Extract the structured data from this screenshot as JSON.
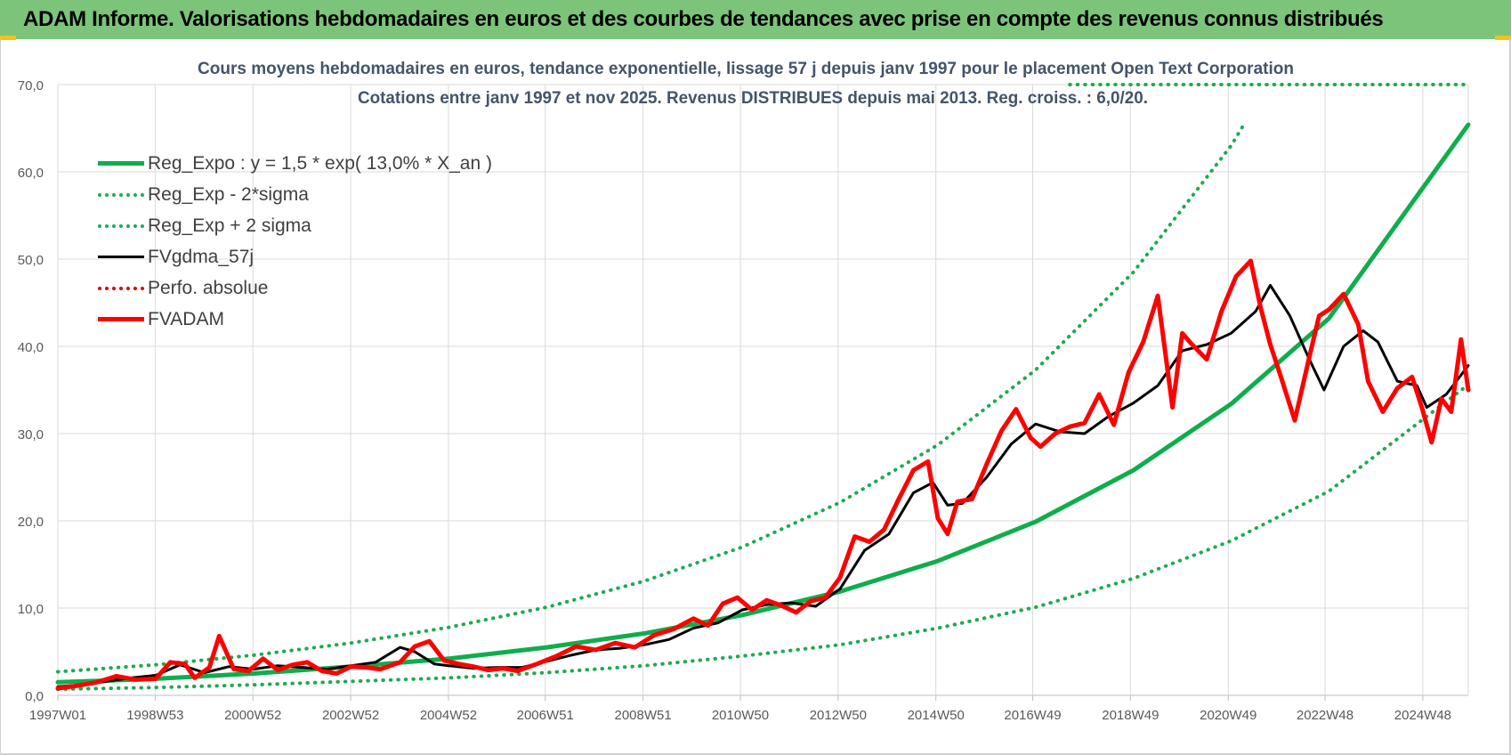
{
  "banner": {
    "title": "ADAM Informe. Valorisations hebdomadaires en euros et des courbes de tendances avec prise en compte des revenus connus distribués"
  },
  "colors": {
    "banner": "#7cc47a",
    "reg_expo": "#0fad4d",
    "sigma": "#1eab50",
    "fvgdma": "#000000",
    "perfo": "#e00000",
    "fvadam": "#ff0000",
    "title_text": "#44546a"
  },
  "chart_data": {
    "type": "line",
    "title": "Cours moyens hebdomadaires en euros, tendance exponentielle, lissage 57 j depuis janv 1997 pour le placement Open Text Corporation",
    "subtitle": "Cotations entre janv 1997 et nov 2025. Revenus DISTRIBUES depuis mai 2013. Reg. croiss. : 6,0/20.",
    "xlabel": "",
    "ylabel": "",
    "ylim": [
      0,
      70
    ],
    "xlim": [
      1997.0,
      2025.85
    ],
    "grid": true,
    "legend_position": "top-left",
    "y_ticks": [
      "0,0",
      "10,0",
      "20,0",
      "30,0",
      "40,0",
      "50,0",
      "60,0",
      "70,0"
    ],
    "x_ticks": [
      {
        "x": 1997.0,
        "label": "1997W01"
      },
      {
        "x": 1998.99,
        "label": "1998W53"
      },
      {
        "x": 2000.99,
        "label": "2000W52"
      },
      {
        "x": 2002.99,
        "label": "2002W52"
      },
      {
        "x": 2004.99,
        "label": "2004W52"
      },
      {
        "x": 2006.97,
        "label": "2006W51"
      },
      {
        "x": 2008.97,
        "label": "2008W51"
      },
      {
        "x": 2010.96,
        "label": "2010W50"
      },
      {
        "x": 2012.96,
        "label": "2012W50"
      },
      {
        "x": 2014.96,
        "label": "2014W50"
      },
      {
        "x": 2016.94,
        "label": "2016W49"
      },
      {
        "x": 2018.94,
        "label": "2018W49"
      },
      {
        "x": 2020.94,
        "label": "2020W49"
      },
      {
        "x": 2022.92,
        "label": "2022W48"
      },
      {
        "x": 2024.92,
        "label": "2024W48"
      }
    ],
    "series": [
      {
        "name": "Reg_Expo : y = 1,5 * exp( 13,0% *  X_an )",
        "style": "solid-thick",
        "color": "#0fad4d",
        "x": [
          1997.0,
          1999.0,
          2001.0,
          2003.0,
          2005.0,
          2007.0,
          2009.0,
          2011.0,
          2013.0,
          2015.0,
          2017.0,
          2019.0,
          2021.0,
          2023.0,
          2025.85
        ],
        "y": [
          1.5,
          1.9,
          2.5,
          3.3,
          4.2,
          5.5,
          7.1,
          9.2,
          11.9,
          15.4,
          19.9,
          25.8,
          33.4,
          43.2,
          65.4
        ]
      },
      {
        "name": "Reg_Exp - 2*sigma",
        "style": "dotted",
        "color": "#1eab50",
        "x": [
          1997.0,
          1999.0,
          2001.0,
          2003.0,
          2005.0,
          2007.0,
          2009.0,
          2011.0,
          2013.0,
          2015.0,
          2017.0,
          2019.0,
          2021.0,
          2023.0,
          2025.85
        ],
        "y": [
          0.7,
          0.9,
          1.2,
          1.6,
          2.0,
          2.6,
          3.4,
          4.5,
          5.8,
          7.7,
          10.1,
          13.4,
          17.7,
          23.4,
          35.6
        ]
      },
      {
        "name": "Reg_Exp + 2 sigma",
        "style": "dotted",
        "color": "#1eab50",
        "x": [
          1997.0,
          1999.0,
          2001.0,
          2003.0,
          2005.0,
          2007.0,
          2009.0,
          2011.0,
          2013.0,
          2015.0,
          2017.0,
          2019.0,
          2021.0,
          2021.3
        ],
        "y": [
          2.7,
          3.5,
          4.6,
          6.0,
          7.8,
          10.1,
          13.1,
          17.0,
          22.1,
          28.7,
          37.3,
          48.5,
          63.0,
          65.8
        ]
      },
      {
        "name": "",
        "style": "dotted",
        "color": "#1eab50",
        "x": [
          2017.7,
          2025.85
        ],
        "y": [
          70.0,
          70.0
        ]
      },
      {
        "name": "FVgdma_57j",
        "style": "solid",
        "color": "#000000",
        "x": [
          1997.0,
          1997.5,
          1998.0,
          1998.5,
          1999.0,
          1999.5,
          2000.0,
          2000.5,
          2001.0,
          2001.5,
          2002.0,
          2002.5,
          2003.0,
          2003.5,
          2004.0,
          2004.3,
          2004.7,
          2005.0,
          2005.5,
          2006.0,
          2006.5,
          2007.0,
          2007.5,
          2008.0,
          2008.5,
          2009.0,
          2009.5,
          2010.0,
          2010.5,
          2011.0,
          2011.5,
          2012.0,
          2012.5,
          2013.0,
          2013.5,
          2014.0,
          2014.5,
          2014.9,
          2015.2,
          2015.5,
          2016.0,
          2016.5,
          2017.0,
          2017.5,
          2018.0,
          2018.5,
          2019.0,
          2019.5,
          2020.0,
          2020.5,
          2021.0,
          2021.5,
          2021.8,
          2022.2,
          2022.6,
          2022.9,
          2023.3,
          2023.7,
          2024.0,
          2024.4,
          2024.8,
          2025.0,
          2025.4,
          2025.85
        ],
        "y": [
          1.0,
          1.2,
          1.6,
          2.0,
          2.3,
          3.5,
          2.6,
          3.3,
          3.0,
          3.4,
          3.2,
          3.0,
          3.4,
          3.8,
          5.5,
          5.0,
          3.6,
          3.4,
          3.1,
          3.2,
          3.2,
          3.9,
          4.6,
          5.2,
          5.4,
          5.8,
          6.4,
          7.7,
          8.3,
          9.8,
          10.4,
          10.6,
          10.2,
          12.2,
          16.6,
          18.5,
          23.2,
          24.4,
          21.8,
          22.0,
          25.0,
          28.8,
          31.1,
          30.2,
          30.0,
          32.0,
          33.5,
          35.5,
          39.5,
          40.2,
          41.5,
          44.0,
          47.0,
          43.5,
          38.5,
          35.0,
          40.0,
          41.8,
          40.5,
          36.0,
          35.5,
          33.0,
          34.5,
          37.8
        ]
      },
      {
        "name": "Perfo. absolue",
        "style": "dotted",
        "color": "#e00000",
        "x": [],
        "y": []
      },
      {
        "name": "FVADAM",
        "style": "solid-thick",
        "color": "#ff0000",
        "x": [
          1997.0,
          1997.4,
          1997.8,
          1998.2,
          1998.6,
          1999.0,
          1999.3,
          1999.6,
          1999.8,
          2000.1,
          2000.3,
          2000.6,
          2000.9,
          2001.2,
          2001.5,
          2001.8,
          2002.1,
          2002.4,
          2002.7,
          2003.0,
          2003.3,
          2003.6,
          2004.0,
          2004.3,
          2004.6,
          2004.9,
          2005.2,
          2005.5,
          2005.8,
          2006.1,
          2006.4,
          2006.8,
          2007.2,
          2007.6,
          2008.0,
          2008.4,
          2008.8,
          2009.2,
          2009.6,
          2010.0,
          2010.3,
          2010.6,
          2010.9,
          2011.2,
          2011.5,
          2011.8,
          2012.1,
          2012.4,
          2012.7,
          2013.0,
          2013.3,
          2013.6,
          2013.9,
          2014.2,
          2014.5,
          2014.8,
          2015.0,
          2015.2,
          2015.4,
          2015.7,
          2016.0,
          2016.3,
          2016.6,
          2016.9,
          2017.1,
          2017.4,
          2017.7,
          2018.0,
          2018.3,
          2018.6,
          2018.9,
          2019.2,
          2019.5,
          2019.8,
          2020.0,
          2020.2,
          2020.5,
          2020.8,
          2021.1,
          2021.4,
          2021.6,
          2021.8,
          2022.0,
          2022.3,
          2022.6,
          2022.8,
          2023.0,
          2023.3,
          2023.6,
          2023.8,
          2024.1,
          2024.4,
          2024.7,
          2024.9,
          2025.1,
          2025.3,
          2025.5,
          2025.7,
          2025.85
        ],
        "y": [
          0.8,
          1.1,
          1.5,
          2.2,
          1.8,
          1.9,
          3.8,
          3.6,
          2.0,
          3.2,
          6.8,
          3.0,
          2.8,
          4.2,
          2.9,
          3.5,
          3.8,
          2.8,
          2.5,
          3.3,
          3.2,
          3.0,
          3.8,
          5.6,
          6.2,
          4.0,
          3.6,
          3.3,
          2.9,
          3.1,
          2.8,
          3.6,
          4.5,
          5.6,
          5.2,
          6.0,
          5.5,
          6.9,
          7.6,
          8.8,
          8.0,
          10.5,
          11.2,
          9.8,
          10.9,
          10.3,
          9.5,
          10.8,
          11.2,
          13.5,
          18.2,
          17.6,
          19.0,
          22.5,
          25.8,
          26.8,
          20.3,
          18.5,
          22.2,
          22.5,
          26.5,
          30.3,
          32.8,
          29.5,
          28.5,
          30.0,
          30.8,
          31.2,
          34.5,
          31.0,
          37.0,
          40.5,
          45.8,
          33.0,
          41.5,
          40.2,
          38.5,
          44.0,
          48.0,
          49.8,
          44.5,
          40.2,
          36.8,
          31.5,
          38.8,
          43.5,
          44.2,
          46.0,
          42.5,
          36.0,
          32.5,
          35.2,
          36.5,
          33.0,
          29.0,
          34.0,
          32.5,
          40.8,
          35.0
        ]
      }
    ]
  }
}
